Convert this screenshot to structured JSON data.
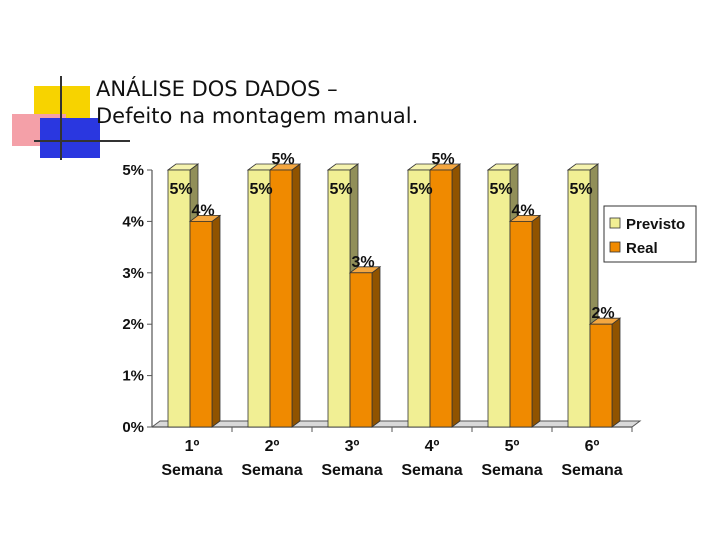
{
  "slide": {
    "title_line1": "ANÁLISE DOS DADOS –",
    "title_line2": "Defeito na montagem manual."
  },
  "colors": {
    "previsto": "#f1ef94",
    "real": "#f08a00",
    "deco_yellow": "#f7d300",
    "deco_red": "#f4a0a8",
    "deco_blue": "#2a37e0"
  },
  "chart_data": {
    "type": "bar",
    "categories": [
      [
        "1º",
        "Semana"
      ],
      [
        "2º",
        "Semana"
      ],
      [
        "3º",
        "Semana"
      ],
      [
        "4º",
        "Semana"
      ],
      [
        "5º",
        "Semana"
      ],
      [
        "6º",
        "Semana"
      ]
    ],
    "series": [
      {
        "name": "Previsto",
        "values": [
          5,
          5,
          5,
          5,
          5,
          5
        ],
        "labels": [
          "5%",
          "5%",
          "5%",
          "5%",
          "5%",
          "5%"
        ]
      },
      {
        "name": "Real",
        "values": [
          4,
          5,
          3,
          5,
          4,
          2
        ],
        "labels": [
          "4%",
          "5%",
          "3%",
          "5%",
          "4%",
          "2%"
        ]
      }
    ],
    "y_ticks": [
      "0%",
      "1%",
      "2%",
      "3%",
      "4%",
      "5%"
    ],
    "ylim": [
      0,
      5
    ],
    "legend": [
      "Previsto",
      "Real"
    ],
    "legend_position": "right"
  }
}
